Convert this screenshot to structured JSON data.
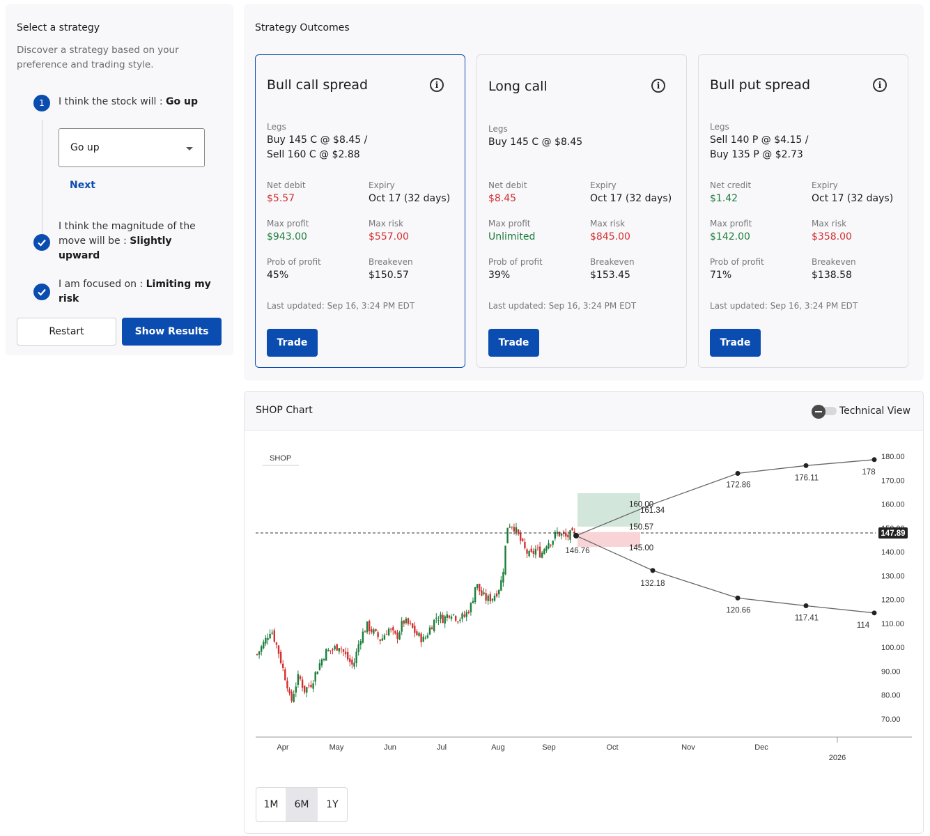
{
  "strategy_selector": {
    "title": "Select a strategy",
    "description": "Discover a strategy based on your preference and trading style.",
    "step1": {
      "number": "1",
      "prefix": "I think the stock will :",
      "value": "Go up"
    },
    "dropdown": {
      "selected": "Go up"
    },
    "next_label": "Next",
    "step2": {
      "prefix": "I think the magnitude of the move will be :",
      "value": "Slightly upward"
    },
    "step3": {
      "prefix": "I am focused on :",
      "value": "Limiting my risk"
    },
    "restart_label": "Restart",
    "show_results_label": "Show Results"
  },
  "outcomes": {
    "title": "Strategy Outcomes",
    "cards": [
      {
        "name": "Bull call spread",
        "legs_label": "Legs",
        "legs_line1": "Buy 145 C @ $8.45 /",
        "legs_line2": "Sell 160 C @ $2.88",
        "net_label": "Net debit",
        "net_value": "$5.57",
        "expiry_label": "Expiry",
        "expiry_value": "Oct 17 (32 days)",
        "max_profit_label": "Max profit",
        "max_profit_value": "$943.00",
        "max_risk_label": "Max risk",
        "max_risk_value": "$557.00",
        "prob_label": "Prob of profit",
        "prob_value": "45%",
        "breakeven_label": "Breakeven",
        "breakeven_value": "$150.57",
        "updated": "Last updated: Sep 16, 3:24 PM EDT",
        "trade_label": "Trade"
      },
      {
        "name": "Long call",
        "legs_label": "Legs",
        "legs_line1": "Buy 145 C @ $8.45",
        "legs_line2": "",
        "net_label": "Net debit",
        "net_value": "$8.45",
        "expiry_label": "Expiry",
        "expiry_value": "Oct 17 (32 days)",
        "max_profit_label": "Max profit",
        "max_profit_value": "Unlimited",
        "max_risk_label": "Max risk",
        "max_risk_value": "$845.00",
        "prob_label": "Prob of profit",
        "prob_value": "39%",
        "breakeven_label": "Breakeven",
        "breakeven_value": "$153.45",
        "updated": "Last updated: Sep 16, 3:24 PM EDT",
        "trade_label": "Trade"
      },
      {
        "name": "Bull put spread",
        "legs_label": "Legs",
        "legs_line1": "Sell 140 P @ $4.15 /",
        "legs_line2": "Buy 135 P @ $2.73",
        "net_label": "Net credit",
        "net_value": "$1.42",
        "expiry_label": "Expiry",
        "expiry_value": "Oct 17 (32 days)",
        "max_profit_label": "Max profit",
        "max_profit_value": "$142.00",
        "max_risk_label": "Max risk",
        "max_risk_value": "$358.00",
        "prob_label": "Prob of profit",
        "prob_value": "71%",
        "breakeven_label": "Breakeven",
        "breakeven_value": "$138.58",
        "updated": "Last updated: Sep 16, 3:24 PM EDT",
        "trade_label": "Trade"
      }
    ]
  },
  "chart_panel": {
    "title": "SHOP Chart",
    "technical_view_label": "Technical View",
    "technical_view_on": false,
    "range_buttons": [
      "1M",
      "6M",
      "1Y"
    ],
    "range_selected": "6M"
  },
  "chart_data": {
    "type": "candlestick",
    "symbol": "SHOP",
    "x_tick_labels": [
      "Apr",
      "May",
      "Jun",
      "Jul",
      "Aug",
      "Sep",
      "Oct",
      "Nov",
      "Dec",
      "2026"
    ],
    "y_tick_labels": [
      "180.00",
      "170.00",
      "160.00",
      "150.00",
      "140.00",
      "130.00",
      "120.00",
      "110.00",
      "100.00",
      "90.00",
      "80.00",
      "70.00"
    ],
    "ylim": [
      70,
      180
    ],
    "current_price": "147.89",
    "price_range_approx": {
      "start_mar_2025": 98,
      "low_apr_2025": 72,
      "jul_2025": 128,
      "aug_high": 157,
      "sep_2025": 146.76
    },
    "projection_upper": [
      {
        "date": "Sep 16",
        "value": "146.76"
      },
      {
        "date": "Oct 17",
        "value": "160.00"
      },
      {
        "date": "Dec",
        "value": "172.86"
      },
      {
        "date": "Jan",
        "value": "176.11"
      },
      {
        "date": "Feb",
        "value": "178"
      }
    ],
    "projection_lower": [
      {
        "date": "Oct 17",
        "value": "132.18"
      },
      {
        "date": "Dec",
        "value": "120.66"
      },
      {
        "date": "Jan",
        "value": "117.41"
      },
      {
        "date": "Feb",
        "value": "114"
      }
    ],
    "strategy_levels": [
      "160.00",
      "161.34",
      "150.57",
      "145.00"
    ],
    "colors": {
      "up": "#1b7f3b",
      "down": "#d32f2f",
      "profit_zone": "#d3e6dc",
      "loss_zone": "#f8d4d6"
    }
  }
}
